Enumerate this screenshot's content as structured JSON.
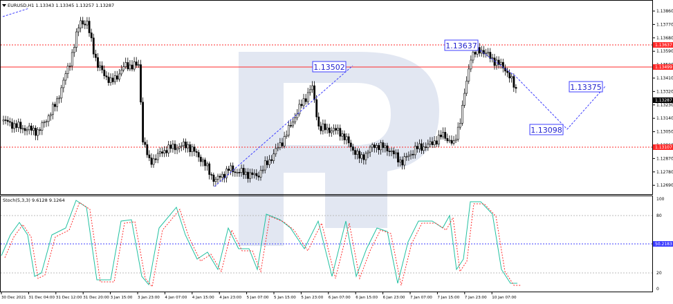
{
  "header": {
    "symbol_info": "EURUSD,H1  1.13343 1.13345 1.13257 1.13287"
  },
  "stoch": {
    "info": "Stoch(5,3,3) 9.6128 9.1264",
    "level_label": "50.2183",
    "axis_labels": [
      "100",
      "80",
      "20",
      "0"
    ]
  },
  "price_axis": {
    "labels": [
      "1.13860",
      "1.13770",
      "1.13680",
      "1.13590",
      "1.13500",
      "1.13410",
      "1.13320",
      "1.13230",
      "1.13140",
      "1.13050",
      "1.12960",
      "1.12870",
      "1.12780",
      "1.12690"
    ],
    "tags": [
      {
        "text": "1.13637",
        "color": "#ff2a2a"
      },
      {
        "text": "1.13499",
        "color": "#ff2a2a"
      },
      {
        "text": "1.13287",
        "color": "#000000"
      },
      {
        "text": "1.13107",
        "color": "#ff2a2a"
      }
    ]
  },
  "annotations": [
    "1.13502",
    "1.13637",
    "1.13375",
    "1.13098"
  ],
  "time_axis": [
    "30 Dec 2021",
    "31 Dec 04:00",
    "31 Dec 12:00",
    "31 Dec 20:00",
    "3 Jan 15:00",
    "3 Jan 23:00",
    "4 Jan 07:00",
    "4 Jan 15:00",
    "4 Jan 23:00",
    "5 Jan 07:00",
    "5 Jan 15:00",
    "5 Jan 23:00",
    "6 Jan 07:00",
    "6 Jan 15:00",
    "6 Jan 23:00",
    "7 Jan 07:00",
    "7 Jan 15:00",
    "7 Jan 23:00",
    "10 Jan 07:00"
  ],
  "colors": {
    "bull": "#ffffff",
    "bear": "#000000",
    "resistance": "#ff2a2a",
    "projection": "#3c3cff",
    "stoch_main": "#20c0a0",
    "stoch_signal": "#ff2a2a"
  }
}
